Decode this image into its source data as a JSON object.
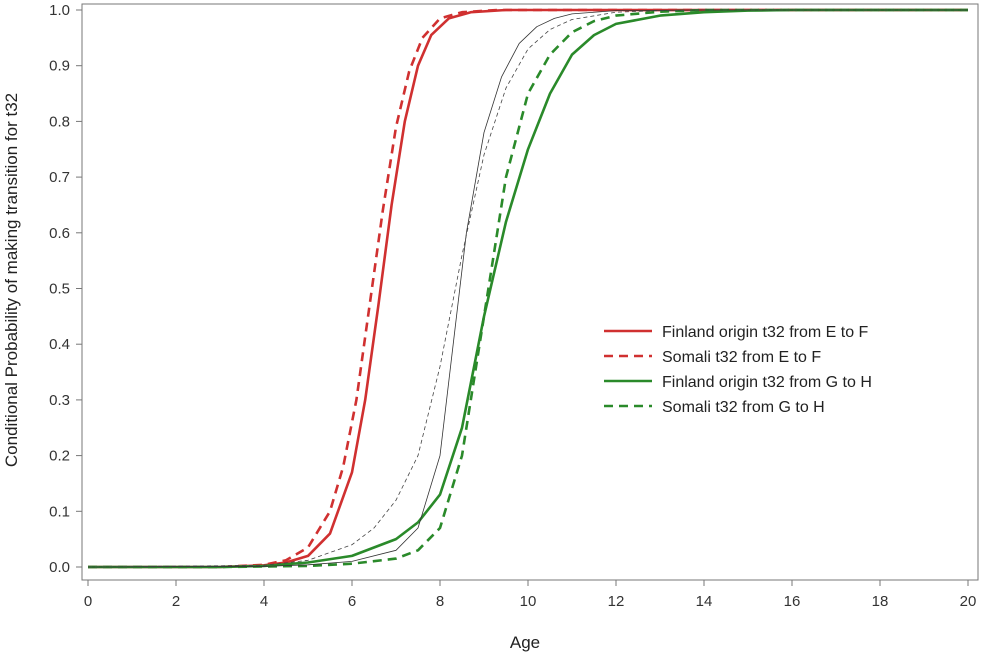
{
  "chart_data": {
    "type": "line",
    "title": "",
    "xlabel": "Age",
    "ylabel": "Conditional Probability of making transition for t32",
    "xlim": [
      0,
      20
    ],
    "ylim": [
      0,
      1.0
    ],
    "x_ticks": [
      "0",
      "2",
      "4",
      "6",
      "8",
      "10",
      "12",
      "14",
      "16",
      "18",
      "20"
    ],
    "y_ticks": [
      "0.0",
      "0.1",
      "0.2",
      "0.3",
      "0.4",
      "0.5",
      "0.6",
      "0.7",
      "0.8",
      "0.9",
      "1.0"
    ],
    "grid": false,
    "legend_position": "right",
    "series": [
      {
        "name": "Finland origin t32 from E to F",
        "color": "#d03030",
        "dash": "solid",
        "x": [
          0,
          3,
          4,
          4.5,
          5,
          5.5,
          6,
          6.3,
          6.6,
          6.9,
          7.2,
          7.5,
          7.8,
          8.2,
          8.7,
          9.5,
          11,
          14,
          20
        ],
        "y": [
          0,
          0.0,
          0.003,
          0.008,
          0.02,
          0.06,
          0.17,
          0.3,
          0.47,
          0.65,
          0.8,
          0.9,
          0.955,
          0.985,
          0.996,
          1.0,
          1.0,
          1.0,
          1.0
        ]
      },
      {
        "name": "Somali t32 from E to F",
        "color": "#d03030",
        "dash": "dashed",
        "x": [
          0,
          3,
          4,
          4.5,
          5,
          5.5,
          5.8,
          6.1,
          6.4,
          6.7,
          7.0,
          7.3,
          7.6,
          8.0,
          8.5,
          9.3,
          11,
          14,
          20
        ],
        "y": [
          0,
          0.0,
          0.004,
          0.012,
          0.035,
          0.1,
          0.18,
          0.3,
          0.47,
          0.64,
          0.79,
          0.89,
          0.95,
          0.985,
          0.996,
          1.0,
          1.0,
          1.0,
          1.0
        ]
      },
      {
        "name": "Finland origin t32 from G to H",
        "color": "#2a8a2a",
        "dash": "solid",
        "x": [
          0,
          3,
          4,
          5,
          6,
          7,
          7.5,
          8,
          8.5,
          9,
          9.5,
          10,
          10.5,
          11,
          11.5,
          12,
          13,
          14,
          15,
          16,
          18,
          20
        ],
        "y": [
          0,
          0.0,
          0.002,
          0.008,
          0.02,
          0.05,
          0.08,
          0.13,
          0.25,
          0.45,
          0.62,
          0.75,
          0.85,
          0.92,
          0.955,
          0.975,
          0.99,
          0.996,
          0.999,
          1.0,
          1.0,
          1.0
        ]
      },
      {
        "name": "Somali t32 from G to H",
        "color": "#2a8a2a",
        "dash": "dashed",
        "x": [
          0,
          3,
          5,
          6,
          7,
          7.5,
          8,
          8.5,
          9,
          9.5,
          10,
          10.5,
          11,
          11.5,
          12,
          13,
          14,
          16,
          20
        ],
        "y": [
          0,
          0.0,
          0.002,
          0.006,
          0.015,
          0.03,
          0.07,
          0.2,
          0.45,
          0.7,
          0.85,
          0.92,
          0.96,
          0.98,
          0.99,
          0.997,
          1.0,
          1.0,
          1.0
        ]
      },
      {
        "name": "",
        "color": "#333333",
        "dash": "thin-solid",
        "x": [
          0,
          4,
          5,
          6,
          7,
          7.5,
          8,
          8.3,
          8.6,
          9,
          9.4,
          9.8,
          10.2,
          10.6,
          11,
          12,
          14,
          20
        ],
        "y": [
          0,
          0.001,
          0.004,
          0.01,
          0.03,
          0.07,
          0.2,
          0.4,
          0.6,
          0.78,
          0.88,
          0.94,
          0.97,
          0.985,
          0.993,
          0.999,
          1.0,
          1.0
        ]
      },
      {
        "name": "",
        "color": "#444444",
        "dash": "thin-dashed",
        "x": [
          0,
          4,
          5,
          6,
          6.5,
          7,
          7.5,
          8,
          8.5,
          9,
          9.5,
          10,
          10.5,
          11,
          12,
          13,
          14,
          20
        ],
        "y": [
          0,
          0.003,
          0.012,
          0.04,
          0.07,
          0.12,
          0.2,
          0.36,
          0.56,
          0.74,
          0.86,
          0.93,
          0.965,
          0.983,
          0.996,
          0.999,
          1.0,
          1.0
        ]
      }
    ]
  }
}
